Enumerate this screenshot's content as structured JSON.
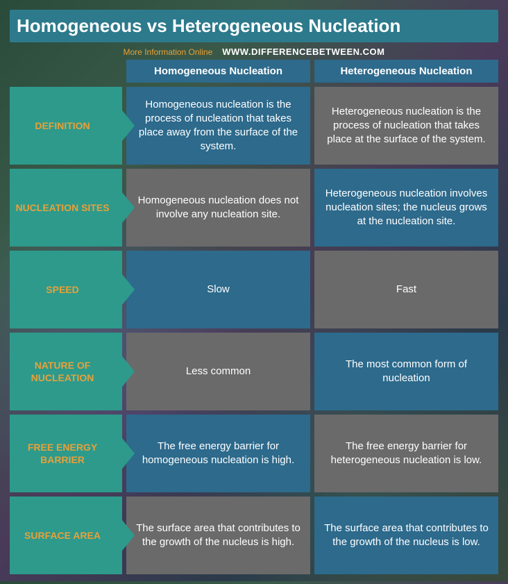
{
  "title": "Homogeneous vs Heterogeneous Nucleation",
  "subtitle_left": "More Information  Online",
  "subtitle_right": "WWW.DIFFERENCEBETWEEN.COM",
  "colors": {
    "title_bg": "#2d7a8c",
    "header_bg": "#2d6a8c",
    "label_bg": "#2d9a8c",
    "label_text": "#e8a13a",
    "cell_blue": "#2d6a8c",
    "cell_gray": "#6a6a6a",
    "text_white": "#ffffff"
  },
  "columns": {
    "col1": "Homogeneous Nucleation",
    "col2": "Heterogeneous Nucleation"
  },
  "rows": [
    {
      "label": "DEFINITION",
      "homo": "Homogeneous nucleation is the process of nucleation that takes place away from the surface of the system.",
      "hetero": "Heterogeneous nucleation is the process of nucleation that takes place at the surface of the system.",
      "homo_bg": "blue",
      "hetero_bg": "gray"
    },
    {
      "label": "NUCLEATION SITES",
      "homo": "Homogeneous nucleation does not involve any nucleation site.",
      "hetero": "Heterogeneous nucleation involves nucleation sites; the nucleus grows at the nucleation site.",
      "homo_bg": "gray",
      "hetero_bg": "blue"
    },
    {
      "label": "SPEED",
      "homo": "Slow",
      "hetero": "Fast",
      "homo_bg": "blue",
      "hetero_bg": "gray"
    },
    {
      "label": "NATURE OF NUCLEATION",
      "homo": "Less common",
      "hetero": "The most common form of nucleation",
      "homo_bg": "gray",
      "hetero_bg": "blue"
    },
    {
      "label": "FREE ENERGY BARRIER",
      "homo": "The free energy barrier for homogeneous nucleation is high.",
      "hetero": "The free energy barrier for heterogeneous nucleation is low.",
      "homo_bg": "blue",
      "hetero_bg": "gray"
    },
    {
      "label": "SURFACE AREA",
      "homo": "The surface area that contributes to the growth of the nucleus is high.",
      "hetero": "The surface area that contributes to the growth of the nucleus is low.",
      "homo_bg": "gray",
      "hetero_bg": "blue"
    }
  ]
}
